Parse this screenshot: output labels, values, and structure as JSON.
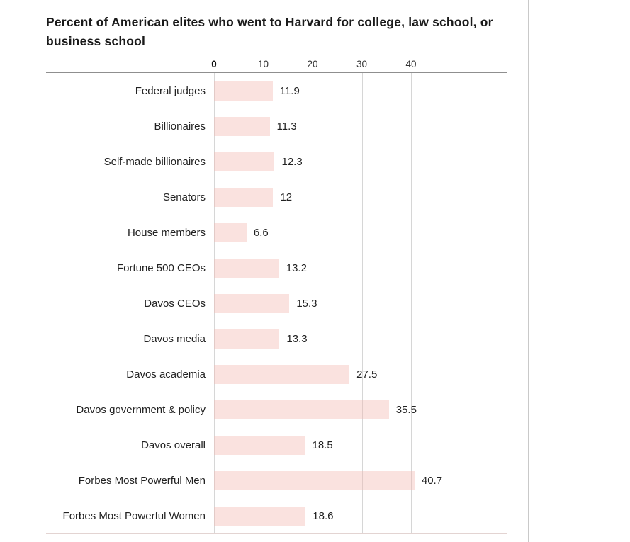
{
  "title": "Percent of American elites who went to Harvard for college, law school, or business school",
  "chart_data": {
    "type": "bar",
    "orientation": "horizontal",
    "title": "Percent of American elites who went to Harvard for college, law school, or business school",
    "categories": [
      "Federal judges",
      "Billionaires",
      "Self-made billionaires",
      "Senators",
      "House members",
      "Fortune 500 CEOs",
      "Davos CEOs",
      "Davos media",
      "Davos academia",
      "Davos government & policy",
      "Davos overall",
      "Forbes Most Powerful Men",
      "Forbes Most Powerful Women"
    ],
    "values": [
      11.9,
      11.3,
      12.3,
      12,
      6.6,
      13.2,
      15.3,
      13.3,
      27.5,
      35.5,
      18.5,
      40.7,
      18.6
    ],
    "value_labels": [
      "11.9",
      "11.3",
      "12.3",
      "12",
      "6.6",
      "13.2",
      "15.3",
      "13.3",
      "27.5",
      "35.5",
      "18.5",
      "40.7",
      "18.6"
    ],
    "x_ticks": [
      0,
      10,
      20,
      30,
      40
    ],
    "xlim": [
      0,
      47
    ],
    "xlabel": "",
    "ylabel": "",
    "grid": true,
    "legend": "none",
    "bar_color": "#fbe3e0"
  }
}
